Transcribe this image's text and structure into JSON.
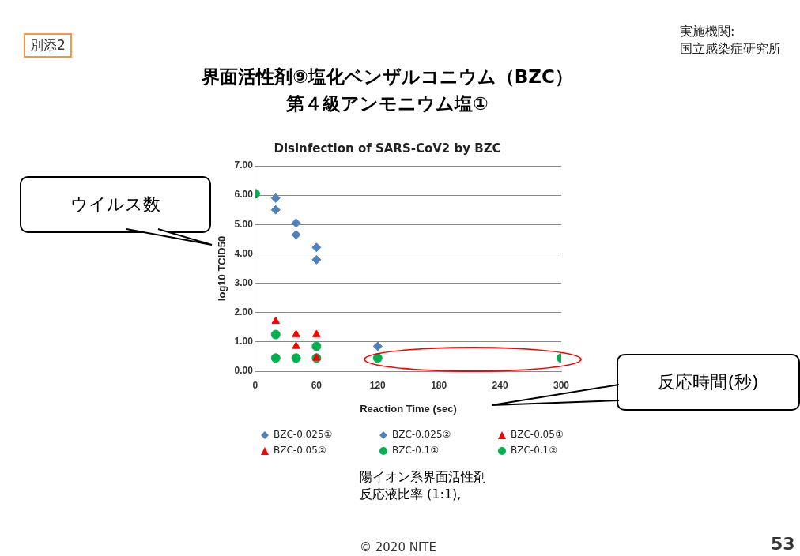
{
  "chart_data": {
    "type": "scatter",
    "title": "Disinfection of SARS-CoV2 by BZC",
    "xlabel": "Reaction Time (sec)",
    "ylabel": "log10 TCID50",
    "x": [
      0,
      20,
      40,
      60,
      120,
      300
    ],
    "series": [
      {
        "name": "BZC-0.025①",
        "color": "#4f81bd",
        "marker": "diamond",
        "values": [
          null,
          5.5,
          4.65,
          4.22,
          0.85,
          null
        ]
      },
      {
        "name": "BZC-0.025②",
        "color": "#4f81bd",
        "marker": "diamond",
        "values": [
          null,
          5.9,
          5.05,
          3.8,
          null,
          null
        ]
      },
      {
        "name": "BZC-0.05①",
        "color": "#ff0000",
        "marker": "triangle",
        "values": [
          null,
          1.7,
          0.85,
          0.45,
          null,
          null
        ]
      },
      {
        "name": "BZC-0.05②",
        "color": "#ff0000",
        "marker": "triangle",
        "values": [
          null,
          null,
          1.25,
          1.25,
          null,
          null
        ]
      },
      {
        "name": "BZC-0.1①",
        "color": "#00b050",
        "marker": "circle",
        "values": [
          6.05,
          1.25,
          0.45,
          0.85,
          0.45,
          0.45
        ]
      },
      {
        "name": "BZC-0.1②",
        "color": "#00b050",
        "marker": "circle",
        "values": [
          null,
          0.45,
          null,
          0.45,
          null,
          null
        ]
      }
    ],
    "xlim": [
      0,
      300
    ],
    "xticks": [
      0,
      60,
      120,
      180,
      240,
      300
    ],
    "ylim": [
      0,
      7
    ],
    "yticks": [
      {
        "value": 0,
        "label": "0.00"
      },
      {
        "value": 1,
        "label": "1.00"
      },
      {
        "value": 2,
        "label": "2.00"
      },
      {
        "value": 3,
        "label": "3.00"
      },
      {
        "value": 4,
        "label": "4.00"
      },
      {
        "value": 5,
        "label": "5.00"
      },
      {
        "value": 6,
        "label": "6.00"
      },
      {
        "value": 7,
        "label": "7.00"
      }
    ],
    "grid": "y",
    "legend": "bottom",
    "annotations": [
      "別添2",
      "実施機関:",
      "国立感染症研究所",
      "界面活性剤⑨塩化ベンザルコニウム（BZC）",
      "第４級アンモニウム塩①",
      "ウイルス数",
      "反応時間(秒)",
      "陽イオン系界面活性剤",
      "反応液比率 (1:1),",
      "© 2020 NITE",
      "53"
    ]
  }
}
